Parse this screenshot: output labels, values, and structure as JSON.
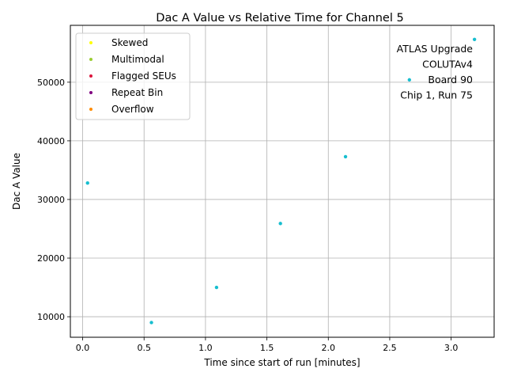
{
  "chart_data": {
    "type": "scatter",
    "title": "Dac A Value vs Relative Time for Channel 5",
    "xlabel": "Time since start of run [minutes]",
    "ylabel": "Dac A Value",
    "xlim": [
      -0.1,
      3.35
    ],
    "ylim": [
      6500,
      59700
    ],
    "xticks": [
      0.0,
      0.5,
      1.0,
      1.5,
      2.0,
      2.5,
      3.0
    ],
    "xtick_labels": [
      "0.0",
      "0.5",
      "1.0",
      "1.5",
      "2.0",
      "2.5",
      "3.0"
    ],
    "yticks": [
      10000,
      20000,
      30000,
      40000,
      50000
    ],
    "ytick_labels": [
      "10000",
      "20000",
      "30000",
      "40000",
      "50000"
    ],
    "grid": true,
    "legend_placement": "upper-left",
    "series": [
      {
        "color": "#17becf",
        "points": [
          {
            "x": 0.04,
            "y": 32800
          },
          {
            "x": 0.56,
            "y": 9000
          },
          {
            "x": 1.09,
            "y": 15000
          },
          {
            "x": 1.61,
            "y": 25900
          },
          {
            "x": 2.14,
            "y": 37300
          },
          {
            "x": 2.66,
            "y": 50400
          },
          {
            "x": 3.19,
            "y": 57300
          }
        ]
      }
    ],
    "legend": [
      {
        "label": "Skewed",
        "color": "#ffff00"
      },
      {
        "label": "Multimodal",
        "color": "#9acd32"
      },
      {
        "label": "Flagged SEUs",
        "color": "#dc143c"
      },
      {
        "label": "Repeat Bin",
        "color": "#800080"
      },
      {
        "label": "Overflow",
        "color": "#ff8c00"
      }
    ],
    "annotation": [
      "ATLAS Upgrade",
      "COLUTAv4",
      "Board 90",
      "Chip 1, Run 75"
    ]
  }
}
